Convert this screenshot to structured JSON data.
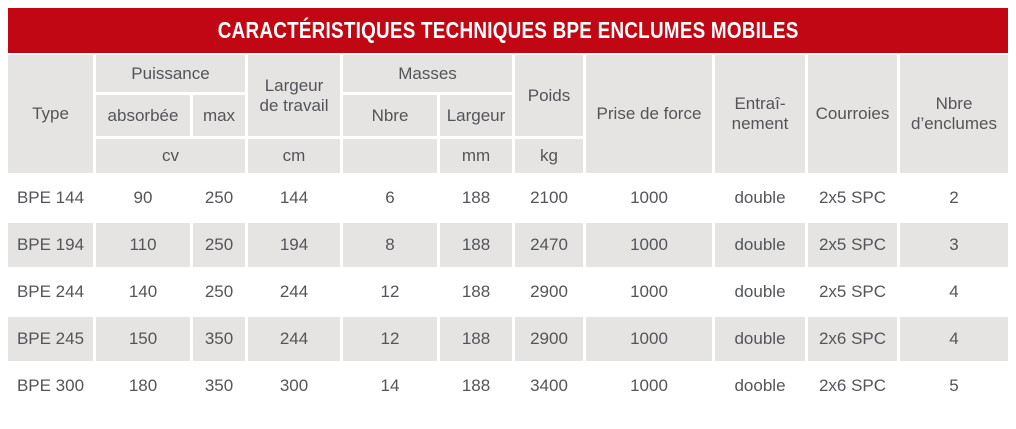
{
  "title": "CARACTÉRISTIQUES TECHNIQUES BPE ENCLUMES MOBILES",
  "colors": {
    "banner_red": "#c10714",
    "cell_gray": "#e5e4e2",
    "text_gray": "#53555a"
  },
  "header": {
    "type": "Type",
    "puissance": "Puissance",
    "absorbee": "absorbée",
    "max": "max",
    "puissance_unit": "cv",
    "largeur_travail_line1": "Largeur",
    "largeur_travail_line2": "de travail",
    "largeur_travail_unit": "cm",
    "masses": "Masses",
    "masses_nbre": "Nbre",
    "masses_largeur": "Largeur",
    "masses_largeur_unit": "mm",
    "poids": "Poids",
    "poids_unit": "kg",
    "prise_de_force": "Prise de force",
    "entrainement_line1": "Entraî-",
    "entrainement_line2": "nement",
    "courroies": "Courroies",
    "nbre_enclumes_line1": "Nbre",
    "nbre_enclumes_line2": "d’enclumes"
  },
  "rows": [
    {
      "type": "BPE 144",
      "absorbee": "90",
      "max": "250",
      "largeur_travail": "144",
      "masses_nbre": "6",
      "masses_largeur": "188",
      "poids": "2100",
      "prise_de_force": "1000",
      "entrainement": "double",
      "courroies": "2x5 SPC",
      "nbre_enclumes": "2"
    },
    {
      "type": "BPE 194",
      "absorbee": "110",
      "max": "250",
      "largeur_travail": "194",
      "masses_nbre": "8",
      "masses_largeur": "188",
      "poids": "2470",
      "prise_de_force": "1000",
      "entrainement": "double",
      "courroies": "2x5 SPC",
      "nbre_enclumes": "3"
    },
    {
      "type": "BPE 244",
      "absorbee": "140",
      "max": "250",
      "largeur_travail": "244",
      "masses_nbre": "12",
      "masses_largeur": "188",
      "poids": "2900",
      "prise_de_force": "1000",
      "entrainement": "double",
      "courroies": "2x5 SPC",
      "nbre_enclumes": "4"
    },
    {
      "type": "BPE 245",
      "absorbee": "150",
      "max": "350",
      "largeur_travail": "244",
      "masses_nbre": "12",
      "masses_largeur": "188",
      "poids": "2900",
      "prise_de_force": "1000",
      "entrainement": "double",
      "courroies": "2x6 SPC",
      "nbre_enclumes": "4"
    },
    {
      "type": "BPE 300",
      "absorbee": "180",
      "max": "350",
      "largeur_travail": "300",
      "masses_nbre": "14",
      "masses_largeur": "188",
      "poids": "3400",
      "prise_de_force": "1000",
      "entrainement": "dooble",
      "courroies": "2x6 SPC",
      "nbre_enclumes": "5"
    }
  ]
}
